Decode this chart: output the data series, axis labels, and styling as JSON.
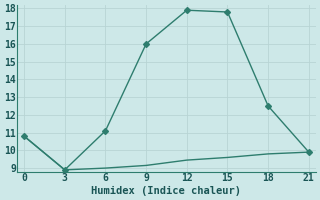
{
  "line1_x": [
    0,
    3,
    6,
    9,
    12,
    15,
    18,
    21
  ],
  "line1_y": [
    10.8,
    8.9,
    11.1,
    16.0,
    17.9,
    17.8,
    12.5,
    9.9
  ],
  "line2_x": [
    0,
    3,
    6,
    9,
    12,
    15,
    18,
    21
  ],
  "line2_y": [
    10.8,
    8.9,
    9.0,
    9.15,
    9.45,
    9.6,
    9.8,
    9.9
  ],
  "line_color": "#2e7d6e",
  "bg_color": "#cde8e8",
  "grid_color_major": "#b8d4d4",
  "grid_color_minor": "#c8dede",
  "xlabel": "Humidex (Indice chaleur)",
  "xlim": [
    -0.5,
    21.5
  ],
  "ylim": [
    8.8,
    18.2
  ],
  "xticks": [
    0,
    3,
    6,
    9,
    12,
    15,
    18,
    21
  ],
  "yticks": [
    9,
    10,
    11,
    12,
    13,
    14,
    15,
    16,
    17,
    18
  ],
  "marker": "D",
  "markersize": 3,
  "linewidth": 1.0,
  "xlabel_fontsize": 7.5,
  "tick_fontsize": 7
}
